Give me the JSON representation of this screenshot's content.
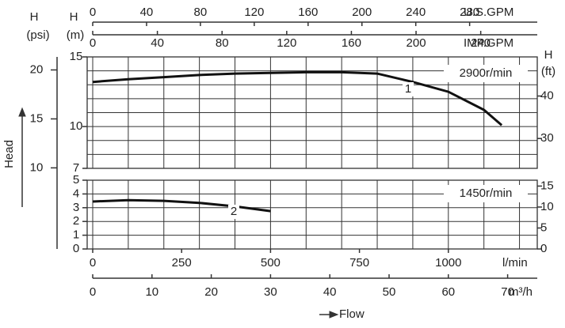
{
  "axis_titles": {
    "head": "Head",
    "flow": "Flow"
  },
  "flow_axes": [
    {
      "unit": "U.S.GPM",
      "xlim": [
        0,
        330.25
      ],
      "xticks": [
        0,
        40,
        80,
        120,
        160,
        200,
        240,
        280
      ]
    },
    {
      "unit": "IMP.GPM",
      "xlim": [
        0,
        274.97
      ],
      "xticks": [
        0,
        40,
        80,
        120,
        160,
        200,
        240
      ]
    },
    {
      "unit": "l/min",
      "xlim": [
        0,
        1250
      ],
      "xticks": [
        0,
        250,
        500,
        750,
        1000
      ]
    },
    {
      "unit": "m³/h",
      "xlim": [
        0,
        75
      ],
      "xticks": [
        0,
        10,
        20,
        30,
        40,
        50,
        60,
        70
      ]
    }
  ],
  "chart_data": [
    {
      "type": "line",
      "speed": "2900r/min",
      "ylabel": {
        "symbol": "H",
        "unit": "(m)"
      },
      "ylim": [
        7,
        15
      ],
      "yticks": [
        7,
        10,
        15
      ],
      "ygrid": [
        7,
        8,
        9,
        10,
        11,
        12,
        13,
        14,
        15
      ],
      "xgrid": [
        0,
        100,
        200,
        300,
        400,
        500,
        600,
        700,
        800,
        900,
        1000,
        1100,
        1200
      ],
      "y2label": {
        "symbol": "H",
        "unit": "(ft)"
      },
      "y2lim": [
        22.97,
        49.21
      ],
      "y2ticks": [
        30,
        40
      ],
      "psi": {
        "symbol": "H",
        "unit": "(psi)",
        "lim": [
          9.95,
          21.33
        ],
        "ticks": [
          10,
          15,
          20
        ]
      },
      "x": [
        0,
        100,
        200,
        300,
        400,
        500,
        600,
        700,
        800,
        900,
        1000,
        1100,
        1150
      ],
      "series": [
        {
          "name": "1",
          "color": "#111111",
          "values": [
            13.2,
            13.4,
            13.55,
            13.7,
            13.8,
            13.85,
            13.9,
            13.9,
            13.8,
            13.2,
            12.5,
            11.2,
            10.1
          ]
        }
      ]
    },
    {
      "type": "line",
      "speed": "1450r/min",
      "ylim": [
        0,
        5
      ],
      "yticks": [
        0,
        1,
        2,
        3,
        4,
        5
      ],
      "ygrid": [
        0,
        1,
        2,
        3,
        4,
        5
      ],
      "xgrid": [
        0,
        100,
        200,
        300,
        400,
        500,
        600,
        700,
        800,
        900,
        1000,
        1100,
        1200
      ],
      "y2lim": [
        0,
        16.4
      ],
      "y2ticks": [
        0,
        5,
        10,
        15
      ],
      "x": [
        0,
        100,
        200,
        300,
        400,
        500
      ],
      "series": [
        {
          "name": "2",
          "color": "#111111",
          "values": [
            3.45,
            3.55,
            3.5,
            3.35,
            3.1,
            2.75
          ]
        }
      ]
    }
  ]
}
